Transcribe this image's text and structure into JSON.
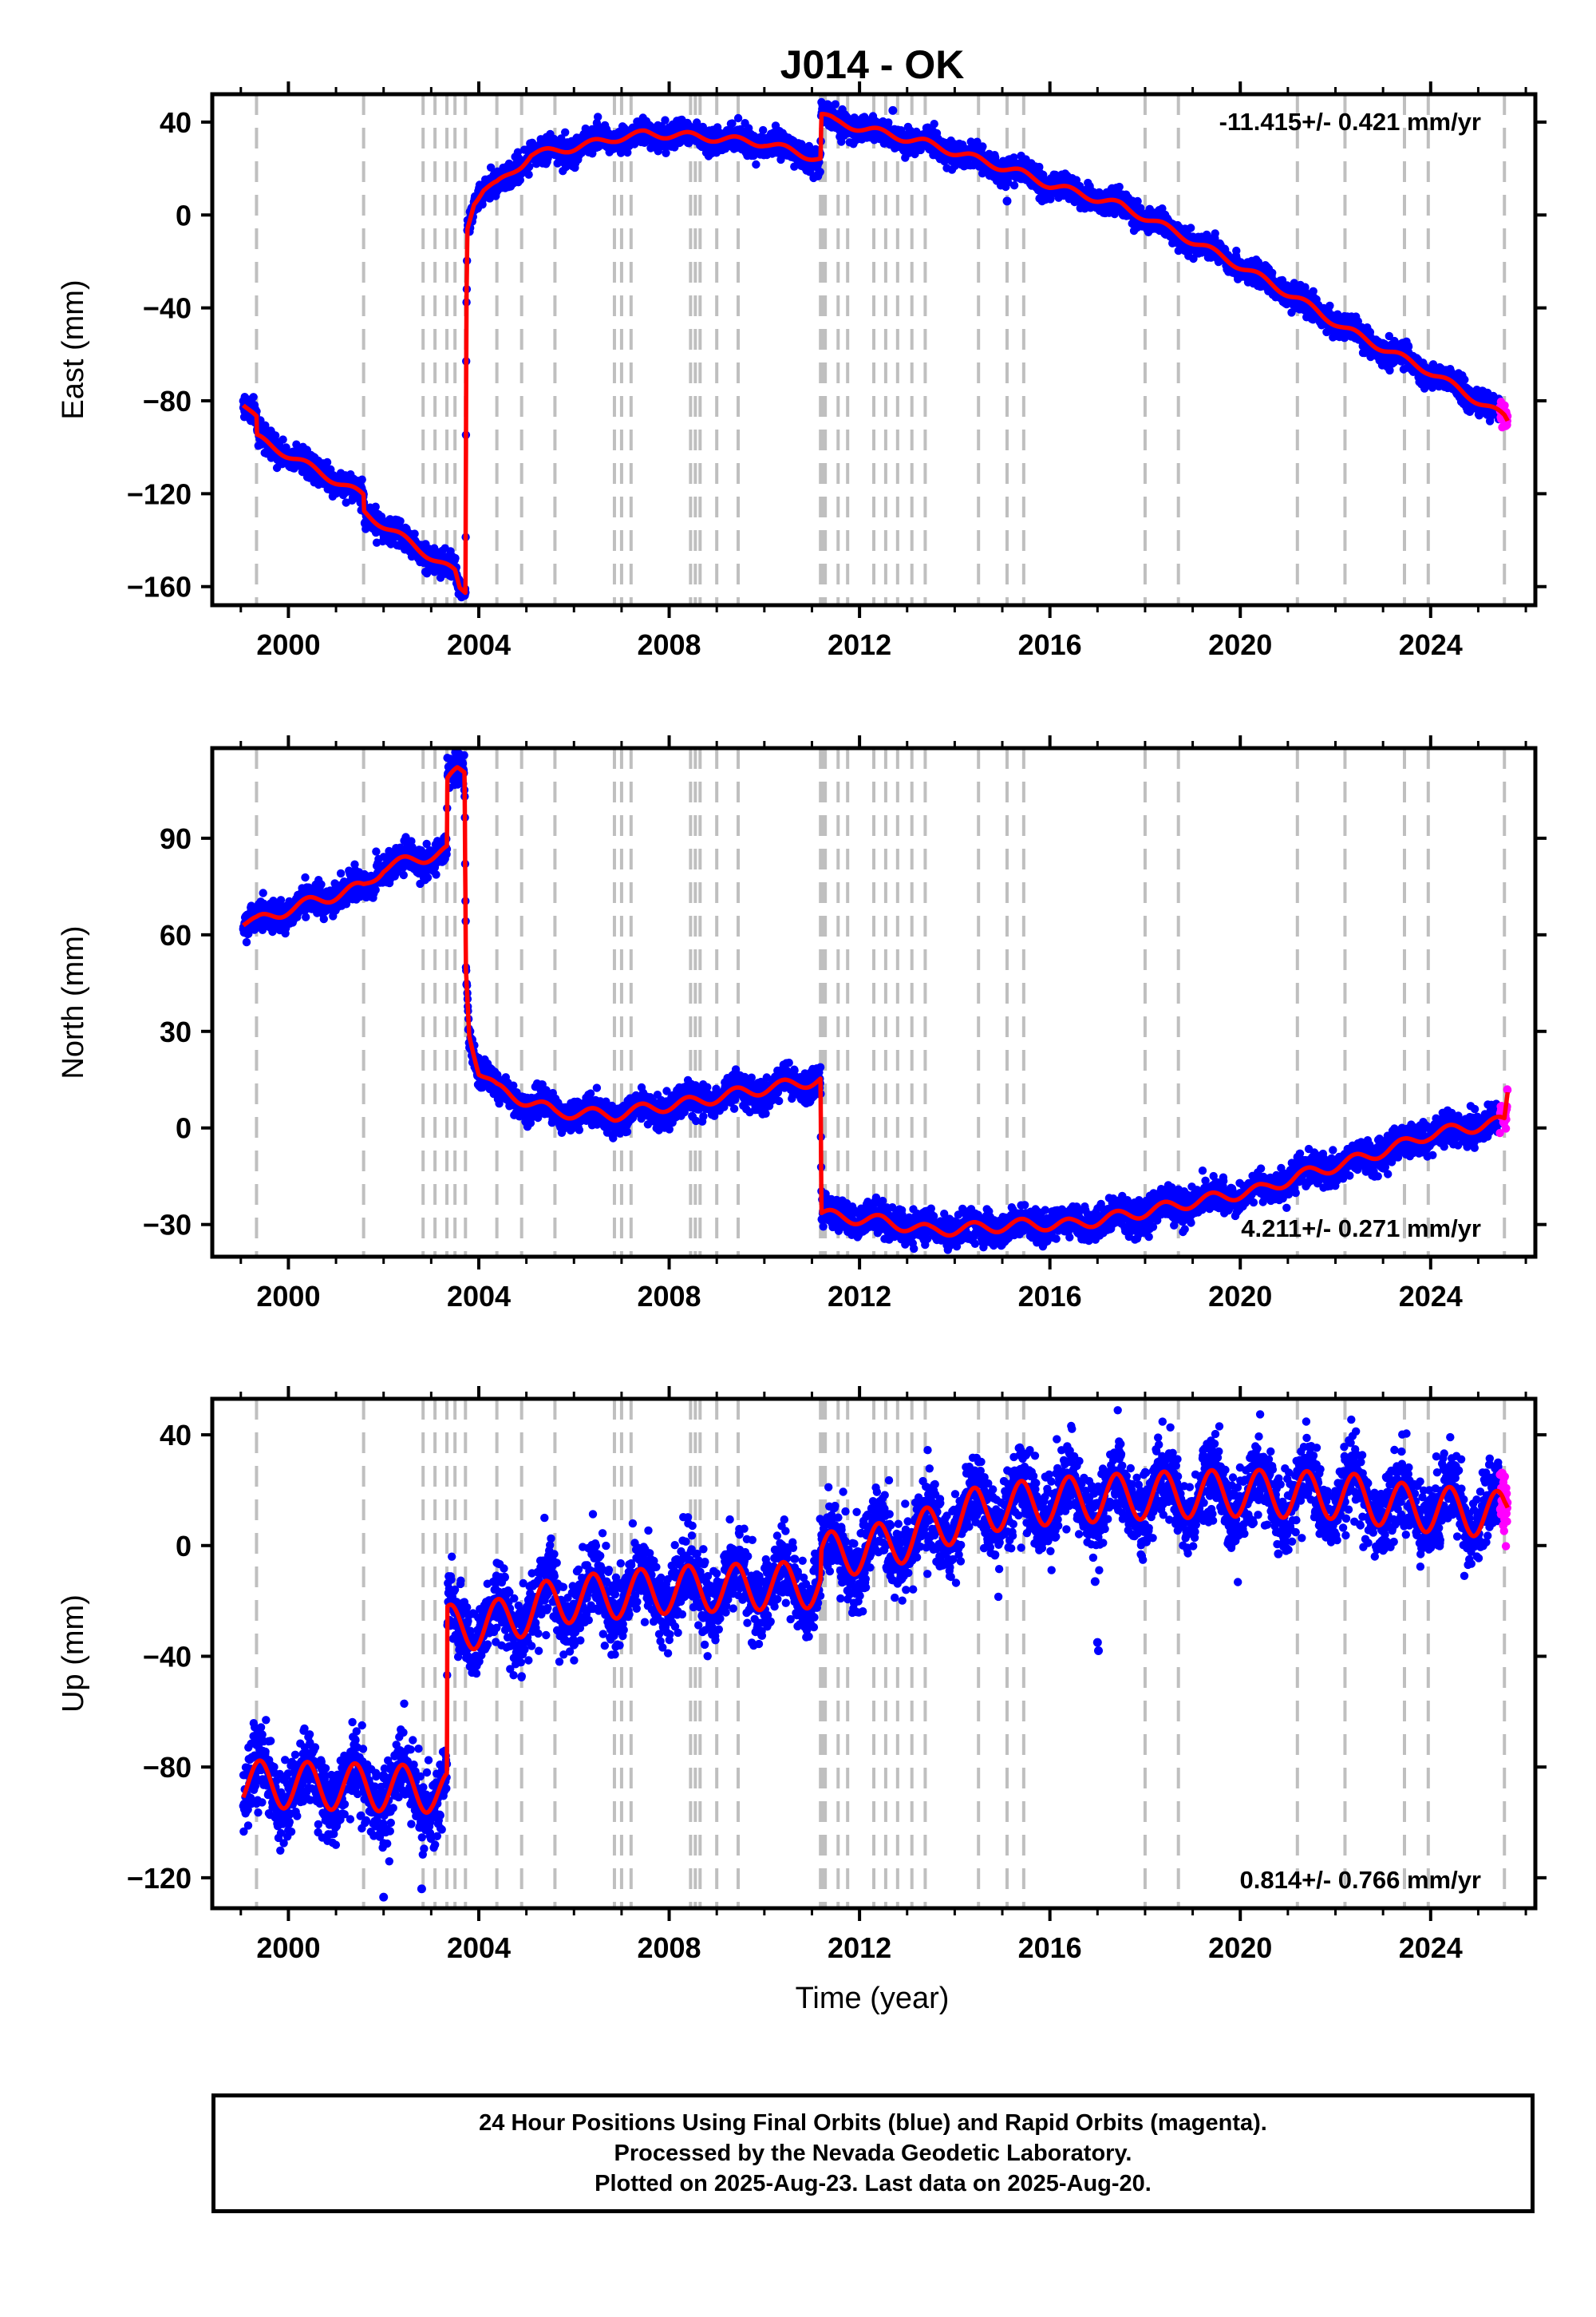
{
  "chart_data": {
    "type": "scatter",
    "title": "J014 - OK",
    "xlabel": "Time (year)",
    "x_ticks": [
      2000,
      2004,
      2008,
      2012,
      2016,
      2020,
      2024
    ],
    "xlim": [
      1998.4,
      2026.2
    ],
    "colors": {
      "final_orbits": "#0000ff",
      "rapid_orbits": "#ff00ff",
      "model": "#ff0000",
      "event_lines": "#bfbfbf"
    },
    "event_lines": [
      1999.33,
      2001.58,
      2002.83,
      2003.08,
      2003.33,
      2003.5,
      2003.72,
      2004.38,
      2004.9,
      2005.6,
      2006.85,
      2007.0,
      2007.2,
      2008.45,
      2008.55,
      2008.65,
      2009.0,
      2009.45,
      2011.18,
      2011.22,
      2011.28,
      2011.55,
      2011.75,
      2012.3,
      2012.55,
      2012.8,
      2013.1,
      2013.38,
      2014.5,
      2015.1,
      2015.45,
      2018.0,
      2018.7,
      2021.2,
      2022.2,
      2023.45,
      2023.95,
      2025.55
    ],
    "rapid_start": 2025.45,
    "panels": [
      {
        "name": "east",
        "ylabel": "East (mm)",
        "ylim": [
          -168,
          52
        ],
        "y_ticks": [
          40,
          0,
          -40,
          -80,
          -120,
          -160
        ],
        "rate_label": "-11.415+/- 0.421 mm/yr",
        "rate_position": "top-right",
        "noise_mm": 2.6,
        "seasonal_amplitude_mm": 1.6,
        "model": [
          [
            1999.05,
            -81
          ],
          [
            1999.33,
            -88
          ],
          [
            1999.34,
            -96
          ],
          [
            2001.58,
            -121
          ],
          [
            2001.59,
            -128
          ],
          [
            2003.5,
            -154
          ],
          [
            2003.6,
            -161
          ],
          [
            2003.72,
            -162
          ],
          [
            2003.74,
            -40
          ],
          [
            2003.76,
            -5
          ],
          [
            2003.9,
            6
          ],
          [
            2004.1,
            11
          ],
          [
            2004.38,
            13
          ],
          [
            2004.9,
            22
          ],
          [
            2005.1,
            26
          ],
          [
            2006.0,
            29
          ],
          [
            2006.85,
            33
          ],
          [
            2007.5,
            35
          ],
          [
            2008.5,
            34
          ],
          [
            2010.0,
            31
          ],
          [
            2011.18,
            24
          ],
          [
            2011.2,
            43
          ],
          [
            2011.5,
            40
          ],
          [
            2013.4,
            31
          ],
          [
            2015.4,
            18
          ],
          [
            2016.0,
            13
          ],
          [
            2017.5,
            4
          ],
          [
            2018.7,
            -8
          ],
          [
            2020.0,
            -22
          ],
          [
            2021.2,
            -36
          ],
          [
            2022.2,
            -49
          ],
          [
            2023.45,
            -62
          ],
          [
            2023.95,
            -67
          ],
          [
            2025.55,
            -87
          ],
          [
            2025.62,
            -89
          ]
        ]
      },
      {
        "name": "north",
        "ylabel": "North (mm)",
        "ylim": [
          -40,
          118
        ],
        "y_ticks": [
          90,
          60,
          30,
          0,
          -30
        ],
        "rate_label": "4.211+/- 0.271 mm/yr",
        "rate_position": "bottom-right",
        "noise_mm": 2.4,
        "seasonal_amplitude_mm": 1.8,
        "model": [
          [
            1999.05,
            64
          ],
          [
            1999.33,
            64
          ],
          [
            2000.0,
            68
          ],
          [
            2001.58,
            75
          ],
          [
            2002.0,
            81
          ],
          [
            2002.83,
            84
          ],
          [
            2003.33,
            86
          ],
          [
            2003.34,
            107
          ],
          [
            2003.55,
            111
          ],
          [
            2003.7,
            111
          ],
          [
            2003.73,
            50
          ],
          [
            2003.8,
            30
          ],
          [
            2004.0,
            18
          ],
          [
            2004.38,
            12
          ],
          [
            2004.9,
            9
          ],
          [
            2005.6,
            5
          ],
          [
            2006.85,
            4
          ],
          [
            2007.5,
            6
          ],
          [
            2008.5,
            8
          ],
          [
            2009.5,
            11
          ],
          [
            2011.18,
            15
          ],
          [
            2011.2,
            -27
          ],
          [
            2012.5,
            -29
          ],
          [
            2013.5,
            -32
          ],
          [
            2015.45,
            -30
          ],
          [
            2016.5,
            -30
          ],
          [
            2018.0,
            -26
          ],
          [
            2019.0,
            -23
          ],
          [
            2020.5,
            -19
          ],
          [
            2021.2,
            -15
          ],
          [
            2022.2,
            -11
          ],
          [
            2023.45,
            -5
          ],
          [
            2023.95,
            -2
          ],
          [
            2025.55,
            2
          ],
          [
            2025.62,
            11
          ]
        ]
      },
      {
        "name": "up",
        "ylabel": "Up (mm)",
        "ylim": [
          -131,
          53
        ],
        "y_ticks": [
          40,
          0,
          -40,
          -80,
          -120
        ],
        "rate_label": "0.814+/- 0.766 mm/yr",
        "rate_position": "bottom-right",
        "noise_mm": 7.0,
        "seasonal_amplitude_mm": 8.5,
        "model": [
          [
            1999.05,
            -86
          ],
          [
            2001.0,
            -87
          ],
          [
            2003.0,
            -88
          ],
          [
            2003.33,
            -90
          ],
          [
            2003.34,
            -30
          ],
          [
            2004.38,
            -28
          ],
          [
            2005.6,
            -20
          ],
          [
            2008.0,
            -16
          ],
          [
            2011.18,
            -14
          ],
          [
            2011.2,
            -4
          ],
          [
            2012.55,
            0
          ],
          [
            2013.38,
            5
          ],
          [
            2014.5,
            13
          ],
          [
            2016.0,
            16
          ],
          [
            2018.0,
            18
          ],
          [
            2020.0,
            19
          ],
          [
            2022.2,
            18
          ],
          [
            2023.45,
            14
          ],
          [
            2025.55,
            11
          ],
          [
            2025.62,
            12
          ]
        ]
      }
    ],
    "outliers": [
      {
        "panel": "up",
        "x": 2017.0,
        "y": -35
      },
      {
        "panel": "up",
        "x": 2017.02,
        "y": -38
      },
      {
        "panel": "up",
        "x": 2016.95,
        "y": -13
      },
      {
        "panel": "up",
        "x": 2020.8,
        "y": -3
      },
      {
        "panel": "up",
        "x": 2002.0,
        "y": -127
      },
      {
        "panel": "up",
        "x": 2002.8,
        "y": -124
      },
      {
        "panel": "east",
        "x": 2012.7,
        "y": 45
      },
      {
        "panel": "east",
        "x": 2015.1,
        "y": 6
      }
    ]
  },
  "footer": {
    "line1": "24 Hour Positions Using Final Orbits (blue) and Rapid Orbits (magenta).",
    "line2": "Processed by the Nevada Geodetic Laboratory.",
    "line3": "Plotted on 2025-Aug-23. Last data on 2025-Aug-20."
  }
}
